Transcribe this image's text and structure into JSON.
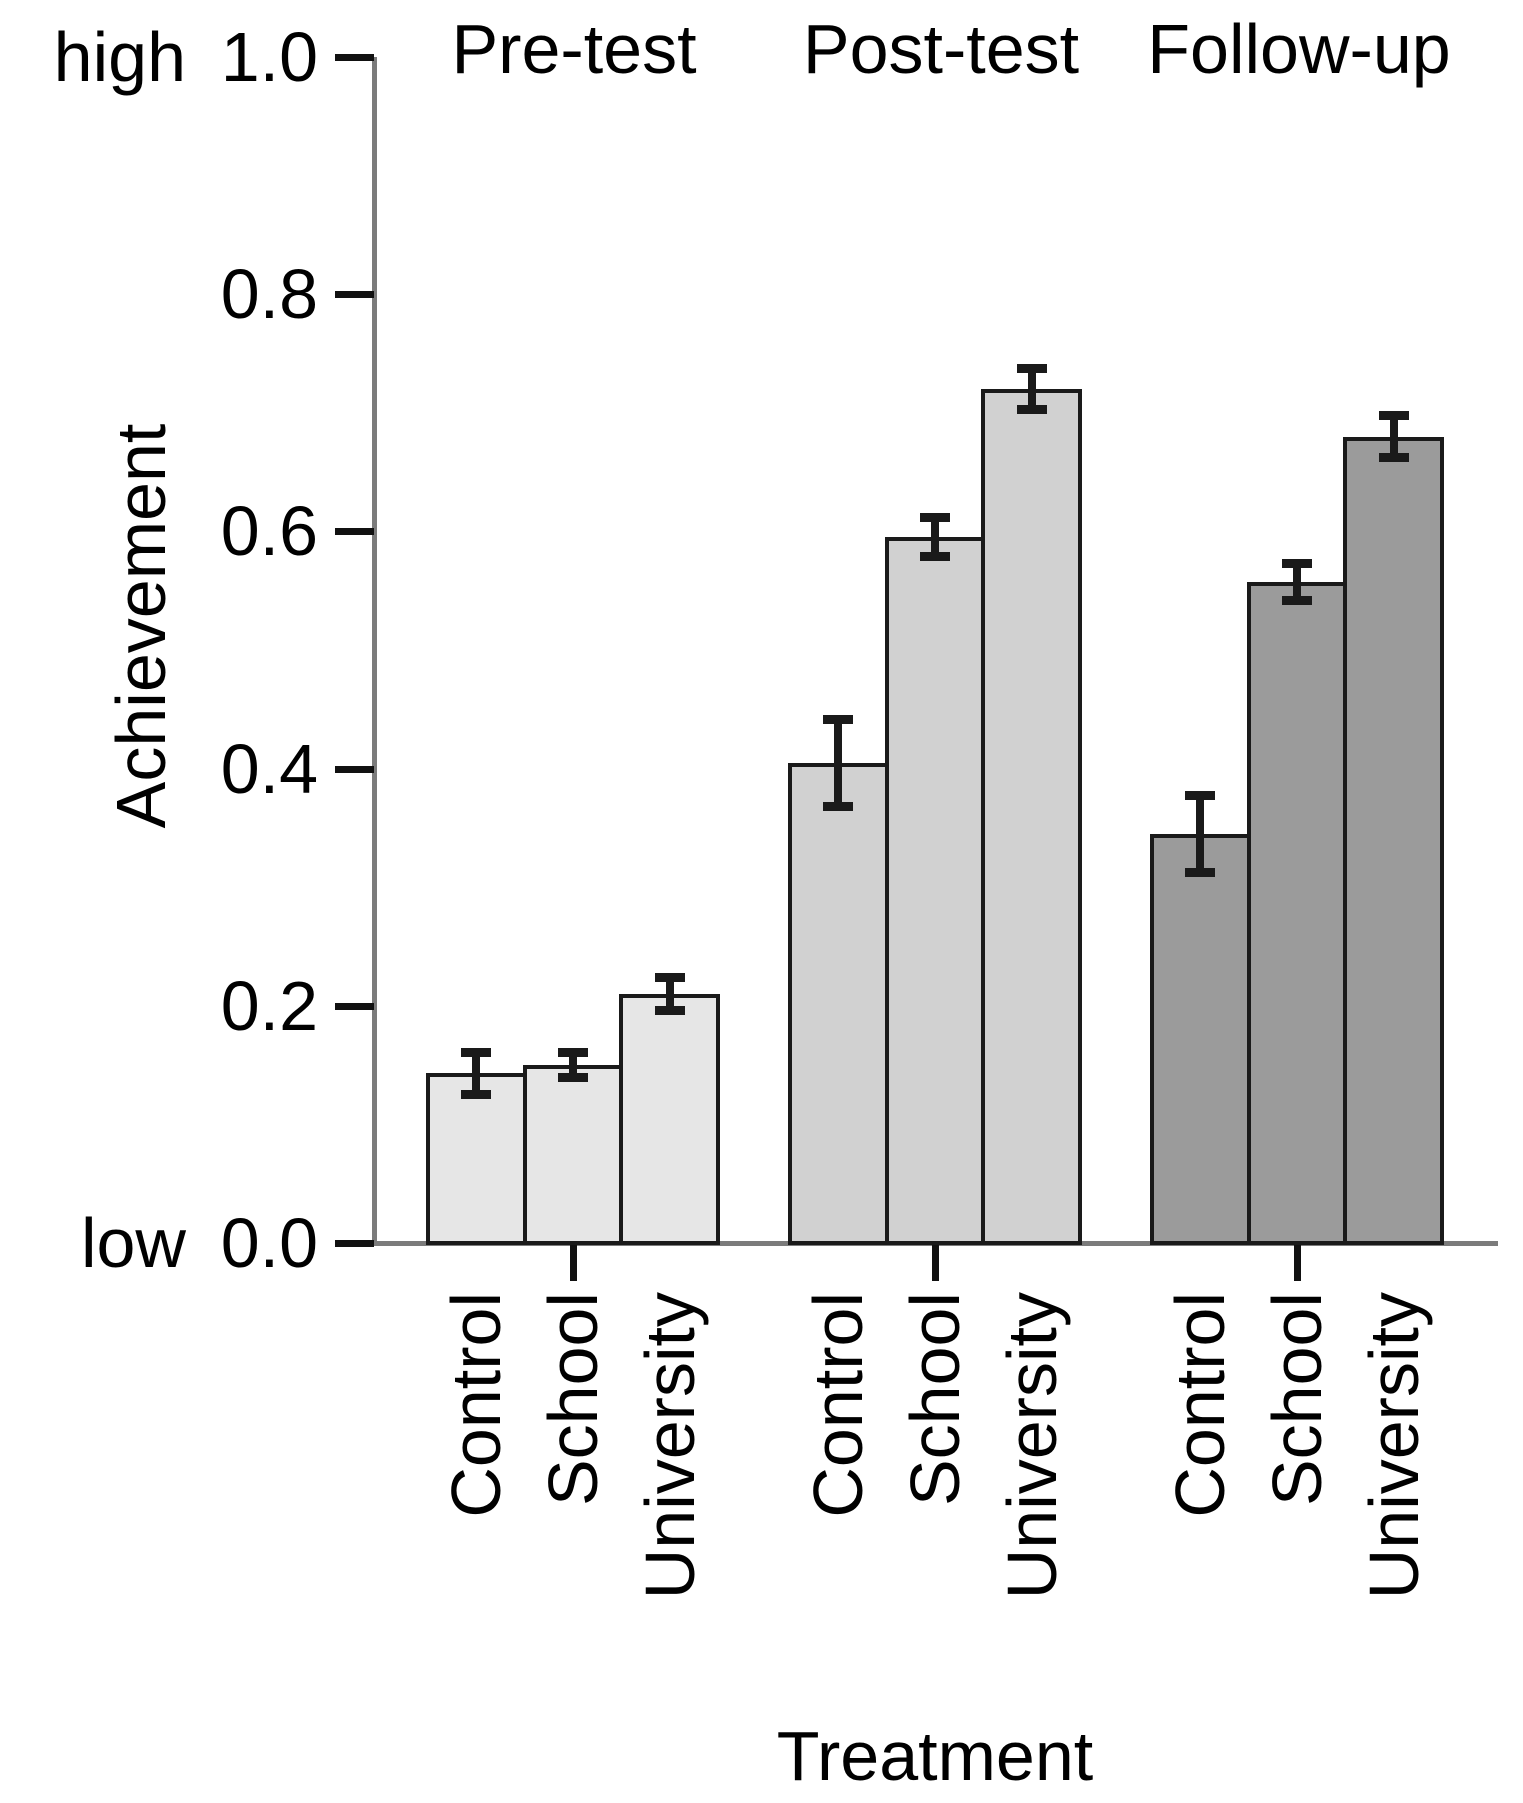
{
  "chart_data": {
    "type": "bar",
    "title": "",
    "xlabel": "Treatment",
    "ylabel": "Achievement",
    "ylim": [
      0.0,
      1.0
    ],
    "ytick_values": [
      0.0,
      0.2,
      0.4,
      0.6,
      0.8,
      1.0
    ],
    "ytick_labels": [
      "0.0",
      "0.2",
      "0.4",
      "0.6",
      "0.8",
      "1.0"
    ],
    "y_endpoint_annotations": {
      "top": "high",
      "bottom": "low"
    },
    "grid": "off",
    "legend": "none",
    "error_bars": true,
    "categories": [
      "Control",
      "School",
      "University"
    ],
    "series": [
      {
        "name": "Pre-test",
        "values": [
          0.143,
          0.15,
          0.21
        ],
        "errors": [
          0.018,
          0.011,
          0.014
        ],
        "fill": "#e6e6e6"
      },
      {
        "name": "Post-test",
        "values": [
          0.405,
          0.595,
          0.72
        ],
        "errors": [
          0.037,
          0.017,
          0.018
        ],
        "fill": "#d1d1d1"
      },
      {
        "name": "Follow-up",
        "values": [
          0.345,
          0.557,
          0.68
        ],
        "errors": [
          0.033,
          0.016,
          0.018
        ],
        "fill": "#9b9b9b"
      }
    ],
    "bar_outline_color": "#1a1a1a",
    "axis_line_color": "#7b7b7b",
    "tick_color": "#111111"
  }
}
